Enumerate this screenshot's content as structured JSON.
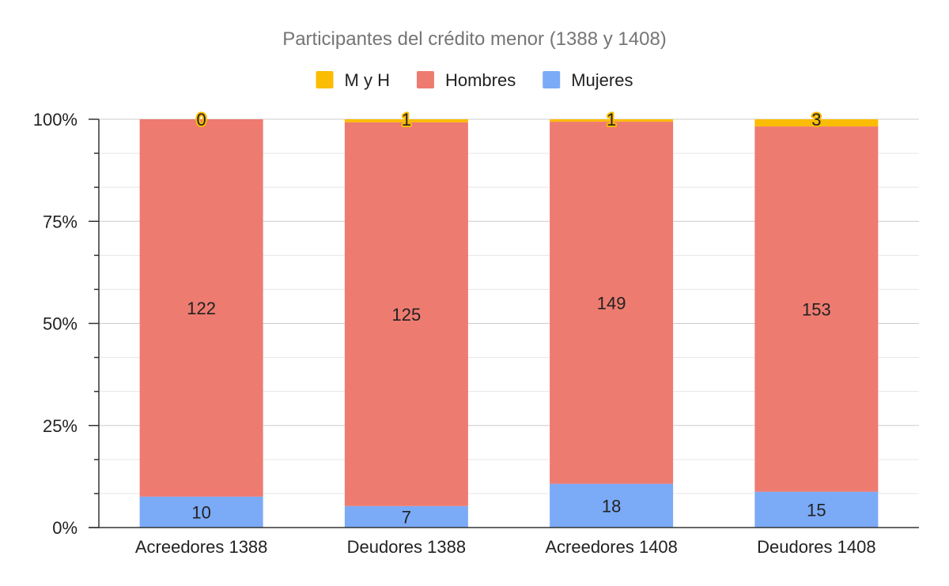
{
  "chart_data": {
    "type": "bar",
    "stacked": "percent",
    "title": "Participantes del crédito menor (1388 y 1408)",
    "xlabel": "",
    "ylabel": "",
    "categories": [
      "Acreedores 1388",
      "Deudores 1388",
      "Acreedores 1408",
      "Deudores 1408"
    ],
    "series": [
      {
        "name": "Mujeres",
        "values": [
          10,
          7,
          18,
          15
        ],
        "color": "#7baaf7"
      },
      {
        "name": "Hombres",
        "values": [
          122,
          125,
          149,
          153
        ],
        "color": "#ee7b70"
      },
      {
        "name": "M y H",
        "values": [
          0,
          1,
          1,
          3
        ],
        "color": "#fbbc04"
      }
    ],
    "legend_order": [
      "M y H",
      "Hombres",
      "Mujeres"
    ],
    "legend_position": "top",
    "y_ticks": [
      "0%",
      "25%",
      "50%",
      "75%",
      "100%"
    ],
    "ylim": [
      0,
      100
    ],
    "grid": true
  }
}
